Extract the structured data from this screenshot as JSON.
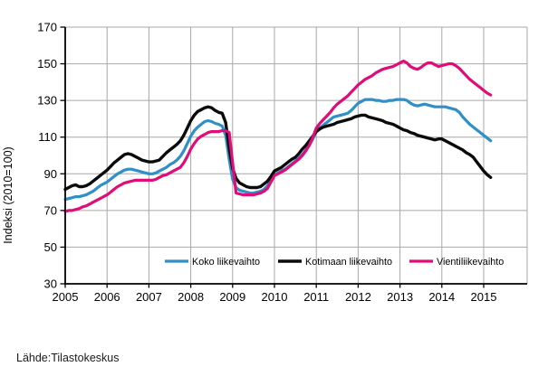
{
  "source_note": "Lähde:Tilastokeskus",
  "chart_data": {
    "type": "line",
    "title": "",
    "ylabel": "Indeksi (2010=100)",
    "xlabel": "",
    "grid": true,
    "legend_position": "bottom-inside",
    "ylim": [
      30,
      170
    ],
    "y_ticks": [
      30,
      50,
      70,
      90,
      110,
      130,
      150,
      170
    ],
    "x_tick_labels": [
      "2005",
      "2006",
      "2007",
      "2008",
      "2009",
      "2010",
      "2011",
      "2012",
      "2013",
      "2014",
      "2015"
    ],
    "x_start_year": 2005,
    "points_per_year": 12,
    "gridline_color": "#a8a8a8",
    "axis_color": "#000000",
    "series": [
      {
        "name": "Koko liikevaihto",
        "color": "#2f8fc6",
        "width": 3.2,
        "values": [
          76,
          76.5,
          77,
          77.5,
          77.5,
          78,
          78.5,
          79.5,
          80.5,
          82,
          83.5,
          84.5,
          85.5,
          87,
          88.5,
          90,
          91,
          92,
          92.5,
          92.5,
          92,
          91.5,
          91,
          90.5,
          90,
          90,
          90.5,
          91.5,
          92.5,
          93.5,
          95,
          96,
          97.5,
          99.5,
          102.5,
          106.5,
          110.5,
          113.5,
          115.5,
          117,
          118.5,
          119,
          118.5,
          117.5,
          117,
          116,
          111,
          98,
          87,
          82.5,
          81,
          80.5,
          80,
          79.5,
          79.5,
          80,
          80.5,
          81.5,
          83.5,
          86.5,
          89.5,
          90.5,
          91.5,
          92.5,
          94,
          95.5,
          97,
          98.5,
          100.5,
          103,
          105.5,
          109,
          113,
          115,
          116.5,
          118,
          119.5,
          121,
          121.5,
          122,
          122.5,
          123,
          124.5,
          126.5,
          128.5,
          129.5,
          130.5,
          130.5,
          130.5,
          130,
          130,
          129.5,
          129.5,
          130,
          130,
          130.5,
          130.5,
          130.5,
          130,
          128.5,
          127.5,
          127,
          127.5,
          128,
          127.5,
          127,
          126.5,
          126.5,
          126.5,
          126.5,
          126,
          125.5,
          125,
          123.5,
          121,
          119,
          117,
          115.5,
          114,
          112.5,
          111,
          109.5,
          108
        ]
      },
      {
        "name": "Kotimaan liikevaihto",
        "color": "#0b0b0b",
        "width": 3.4,
        "values": [
          81.5,
          82.5,
          83.5,
          84,
          83,
          83,
          83.5,
          84.5,
          86,
          87.5,
          89,
          90.5,
          92,
          94,
          96,
          97.5,
          99,
          100.5,
          101,
          100.5,
          99.5,
          98.5,
          97.5,
          97,
          96.5,
          96.5,
          97,
          97.5,
          99.5,
          101.5,
          103,
          104.5,
          106,
          108,
          111,
          115,
          119,
          122,
          124,
          125,
          126,
          126.5,
          126,
          124.5,
          123.5,
          123,
          118,
          104,
          93,
          87.5,
          85,
          84,
          83,
          82.5,
          82.5,
          82.5,
          83,
          84.5,
          86,
          88.5,
          91.5,
          92.5,
          93.5,
          95,
          96.5,
          98,
          99,
          101,
          103.5,
          105.5,
          108,
          110.5,
          113,
          114.5,
          115.5,
          116,
          116.5,
          117,
          118,
          118.5,
          119,
          119.5,
          120,
          121,
          121.5,
          122,
          122,
          121,
          120.5,
          120,
          119.5,
          119,
          118,
          117.5,
          117,
          116,
          115,
          114,
          113.5,
          112.5,
          112,
          111,
          110.5,
          110,
          109.5,
          109,
          108.5,
          109,
          109,
          108,
          107,
          106,
          105,
          104,
          103,
          101.5,
          100.5,
          99,
          96.5,
          94,
          91.5,
          89.5,
          88
        ]
      },
      {
        "name": "Vientiliikevaihto",
        "color": "#e00d78",
        "width": 3.2,
        "values": [
          69.5,
          70,
          70,
          70.5,
          71,
          72,
          72.5,
          73.5,
          74.5,
          75.5,
          76.5,
          77.5,
          78.5,
          80,
          81.5,
          83,
          84,
          85,
          85.5,
          86,
          86.5,
          86.5,
          86.5,
          86.5,
          86.5,
          86.5,
          87,
          88,
          89,
          89.5,
          90.5,
          91.5,
          92.5,
          93.5,
          96,
          99.5,
          103.5,
          106.5,
          109,
          110.5,
          111.5,
          112.5,
          113,
          113,
          113,
          113.5,
          113.5,
          112.5,
          96,
          79.5,
          79,
          78.5,
          78.5,
          78.5,
          78.5,
          79,
          79.5,
          80.5,
          82,
          85.5,
          89,
          90,
          91,
          92,
          93.5,
          95,
          96.5,
          98,
          100,
          102.5,
          105.5,
          110,
          115,
          117.5,
          119.5,
          121.5,
          123.5,
          126,
          128,
          129.5,
          131,
          132.5,
          134.5,
          136.5,
          138.5,
          140,
          141.5,
          142.5,
          143.5,
          145,
          146,
          147,
          147.5,
          148,
          148.5,
          149.5,
          150.5,
          151.5,
          150.5,
          148.5,
          147.5,
          147,
          148,
          149.5,
          150.5,
          150.5,
          149.5,
          148.5,
          149,
          149.5,
          150,
          150,
          149,
          147.5,
          145.5,
          143.5,
          141.5,
          140,
          138.5,
          137,
          135.5,
          134,
          133
        ]
      }
    ]
  }
}
